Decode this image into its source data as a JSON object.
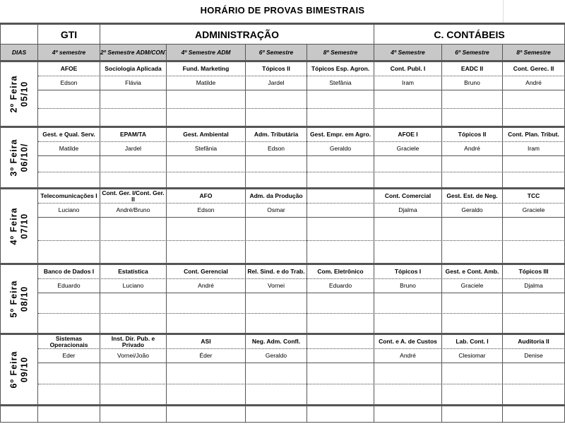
{
  "title": "HORÁRIO DE PROVAS  BIMESTRAIS",
  "groups": [
    {
      "label": ""
    },
    {
      "label": "GTI"
    },
    {
      "label": "ADMINISTRAÇÃO"
    },
    {
      "label": "C. CONTÁBEIS"
    }
  ],
  "subheaders": [
    "DIAS",
    "4º semestre",
    "2º Semestre ADM/CONT",
    "4º Semestre ADM",
    "6º Semestre",
    "8º Semestre",
    "4º Semestre",
    "6º Semestre",
    "8º Semestre"
  ],
  "days": [
    {
      "day": "2º Feira",
      "date": "05/10",
      "subjects": [
        "AFOE",
        "Sociologia Aplicada",
        "Fund. Marketing",
        "Tópicos II",
        "Tópicos Esp. Agron.",
        "Cont. Publ. I",
        "EADC II",
        "Cont. Gerec. II"
      ],
      "teachers": [
        "Edson",
        "Flávia",
        "Matilde",
        "Jardel",
        "Stefânia",
        "Iram",
        "Bruno",
        "André"
      ]
    },
    {
      "day": "3º Feira",
      "date": "06/10/",
      "subjects": [
        "Gest. e Qual. Serv.",
        "EPAM/TA",
        "Gest. Ambiental",
        "Adm. Tributária",
        "Gest. Empr. em Agro.",
        "AFOE I",
        "Tópicos II",
        "Cont. Plan. Tribut."
      ],
      "teachers": [
        "Matilde",
        "Jardel",
        "Stefânia",
        "Edson",
        "Geraldo",
        "Graciele",
        "André",
        "Iram"
      ]
    },
    {
      "day": "4º Feira",
      "date": "07/10",
      "subjects": [
        "Telecomunicações I",
        "Cont. Ger. I/Cont. Ger. II",
        "AFO",
        "Adm. da Produção",
        "",
        "Cont. Comercial",
        "Gest. Est. de Neg.",
        "TCC"
      ],
      "teachers": [
        "Luciano",
        "André/Bruno",
        "Edson",
        "Osmar",
        "",
        "Djalma",
        "Geraldo",
        "Graciele"
      ]
    },
    {
      "day": "5º Feira",
      "date": "08/10",
      "subjects": [
        "Banco de Dados I",
        "Estatística",
        "Cont. Gerencial",
        "Rel. Sind. e do Trab.",
        "Com. Eletrônico",
        "Tópicos I",
        "Gest. e Cont. Amb.",
        "Tópicos III"
      ],
      "teachers": [
        "Eduardo",
        "Luciano",
        "André",
        "Vornei",
        "Eduardo",
        "Bruno",
        "Graciele",
        "Djalma"
      ]
    },
    {
      "day": "6º Feira",
      "date": "09/10",
      "subjects": [
        "Sistemas Operacionais",
        "Inst. Dir. Pub. e Privado",
        "ASI",
        "Neg. Adm. Confl.",
        "",
        "Cont. e A. de Custos",
        "Lab. Cont. I",
        "Auditoria II"
      ],
      "teachers": [
        "Eder",
        "Vornei/João",
        "Éder",
        "Geraldo",
        "",
        "André",
        "Clesiomar",
        "Denise"
      ]
    }
  ],
  "colors": {
    "subheader_bg": "#c8c8c8",
    "grid": "#555555"
  }
}
